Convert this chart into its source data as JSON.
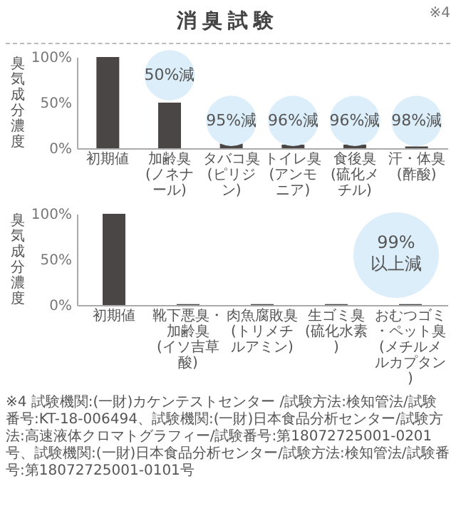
{
  "chart_data": [
    {
      "type": "bar",
      "title": "消臭試験",
      "ylabel": "臭気成分濃度",
      "categories": [
        "初期値",
        "加齢臭\n(ノネナール)",
        "タバコ臭\n(ピリジン)",
        "トイレ臭\n(アンモニア)",
        "食後臭\n(硫化メチル)",
        "汗・体臭\n(酢酸)"
      ],
      "values": [
        100,
        50,
        5,
        4,
        4,
        2
      ],
      "color": "#4a4646",
      "ylim": [
        0,
        100
      ],
      "yticks": [
        {
          "value": 0,
          "label": "0%"
        },
        {
          "value": 50,
          "label": "50%"
        },
        {
          "value": 100,
          "label": "100%"
        }
      ],
      "grid": false,
      "annotations": [
        "※4",
        {
          "text": "50%減",
          "x": "加齢臭\n(ノネナール)",
          "y": 80
        },
        {
          "text": "95%減",
          "x": "タバコ臭\n(ピリジン)",
          "y": 30
        },
        {
          "text": "96%減",
          "x": "トイレ臭\n(アンモニア)",
          "y": 30
        },
        {
          "text": "96%減",
          "x": "食後臭\n(硫化メチル)",
          "y": 30
        },
        {
          "text": "98%減",
          "x": "汗・体臭\n(酢酸)",
          "y": 30
        }
      ]
    },
    {
      "type": "bar",
      "ylabel": "臭気成分濃度",
      "categories": [
        "初期値",
        "靴下悪臭・加齢臭\n(イソ吉草酸)",
        "肉魚腐敗臭\n(トリメチルアミン)",
        "生ゴミ臭\n(硫化水素)",
        "おむつゴミ・ペット臭\n(メチルメルカプタン)"
      ],
      "values": [
        100,
        1,
        1,
        1,
        1
      ],
      "color": "#4a4646",
      "ylim": [
        0,
        100
      ],
      "yticks": [
        {
          "value": 0,
          "label": "0%"
        },
        {
          "value": 50,
          "label": "50%"
        },
        {
          "value": 100,
          "label": "100%"
        }
      ],
      "grid": false,
      "annotations": [
        "99%\n以上減",
        "※4 試験機関:(一財)カケンテストセンター /試験方法:検知管法/試験番号:KT-18-006494、試験機関:(一財)日本食品分析センター/試験方法:高速液体クロマトグラフィー/試験番号:第18072725001-0201号、試験機関:(一財)日本食品分析センター/試験方法:検知管法/試験番号:第18072725001-0101号"
      ]
    }
  ]
}
